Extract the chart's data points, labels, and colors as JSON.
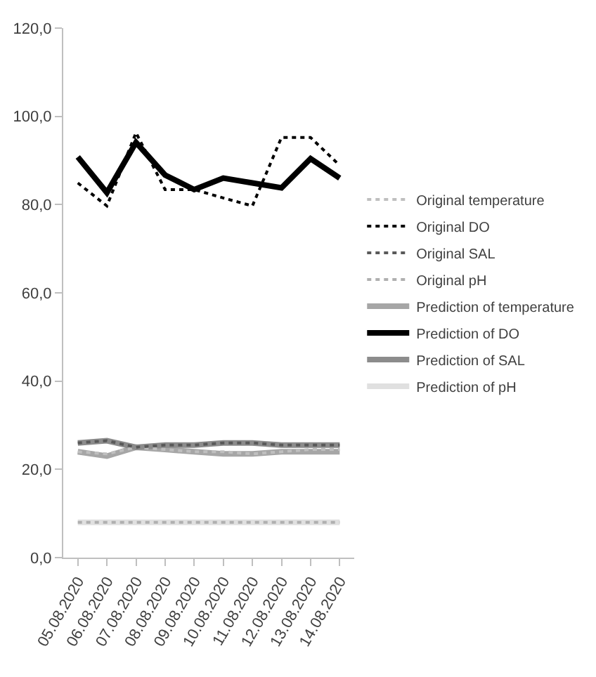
{
  "chart_data": {
    "type": "line",
    "categories": [
      "05.08.2020",
      "06.08.2020",
      "07.08.2020",
      "08.08.2020",
      "09.08.2020",
      "10.08.2020",
      "11.08.2020",
      "12.08.2020",
      "13.08.2020",
      "14.08.2020"
    ],
    "series": [
      {
        "name": "Original temperature",
        "color": "#bfbfbf",
        "line_style": "dotted",
        "values": [
          24.0,
          23.5,
          25.0,
          24.5,
          24.0,
          24.0,
          23.5,
          24.0,
          24.5,
          24.5
        ]
      },
      {
        "name": "Original DO",
        "color": "#000000",
        "line_style": "dotted",
        "values": [
          84.9,
          79.7,
          96.3,
          83.4,
          83.4,
          81.5,
          79.7,
          95.2,
          95.2,
          88.9
        ]
      },
      {
        "name": "Original SAL",
        "color": "#595959",
        "line_style": "dotted",
        "values": [
          26.0,
          26.5,
          25.0,
          25.5,
          25.5,
          26.0,
          26.0,
          25.5,
          25.5,
          25.5
        ]
      },
      {
        "name": "Original pH",
        "color": "#b0b0b0",
        "line_style": "dotted",
        "values": [
          8.0,
          8.0,
          8.0,
          8.0,
          8.0,
          8.0,
          8.0,
          8.0,
          8.0,
          8.0
        ]
      },
      {
        "name": "Prediction of temperature",
        "color": "#a6a6a6",
        "line_style": "solid",
        "values": [
          24.0,
          23.0,
          25.0,
          24.5,
          24.0,
          23.5,
          23.5,
          24.0,
          24.0,
          24.0
        ]
      },
      {
        "name": "Prediction of DO",
        "color": "#000000",
        "line_style": "solid",
        "values": [
          90.8,
          82.7,
          94.1,
          86.7,
          83.4,
          86.0,
          84.9,
          83.8,
          90.4,
          86.0
        ]
      },
      {
        "name": "Prediction of SAL",
        "color": "#8c8c8c",
        "line_style": "solid",
        "values": [
          26.0,
          26.5,
          25.0,
          25.5,
          25.5,
          26.0,
          26.0,
          25.5,
          25.5,
          25.5
        ]
      },
      {
        "name": "Prediction of pH",
        "color": "#e0e0e0",
        "line_style": "solid",
        "values": [
          8.0,
          8.0,
          8.0,
          8.0,
          8.0,
          8.0,
          8.0,
          8.0,
          8.0,
          8.0
        ]
      }
    ],
    "ylim": [
      0,
      120
    ],
    "yticks": [
      {
        "value": 0,
        "label": "0,0"
      },
      {
        "value": 20,
        "label": "20,0"
      },
      {
        "value": 40,
        "label": "40,0"
      },
      {
        "value": 60,
        "label": "60,0"
      },
      {
        "value": 80,
        "label": "80,0"
      },
      {
        "value": 100,
        "label": "100,0"
      },
      {
        "value": 120,
        "label": "120,0"
      }
    ],
    "legend": "right",
    "marker": "none"
  }
}
